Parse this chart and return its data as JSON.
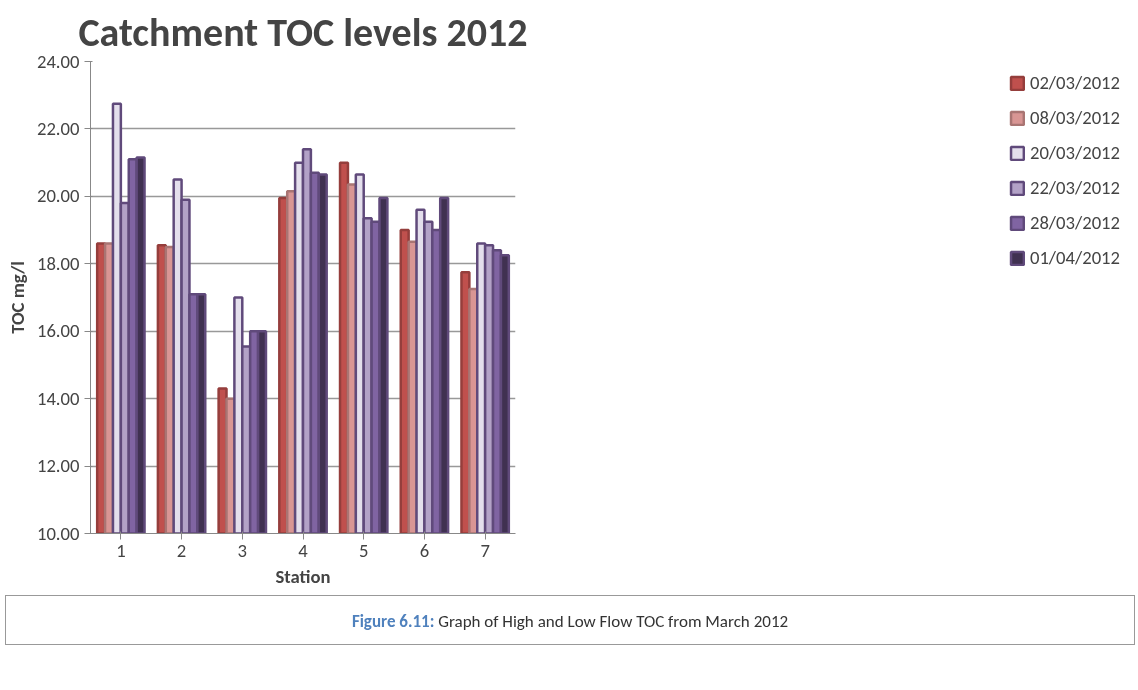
{
  "chart_data": {
    "type": "bar",
    "title": "Catchment TOC levels 2012",
    "xlabel": "Station",
    "ylabel": "TOC mg/l",
    "categories": [
      "1",
      "2",
      "3",
      "4",
      "5",
      "6",
      "7"
    ],
    "series": [
      {
        "name": "02/03/2012",
        "color": "#c0504d",
        "values": [
          18.6,
          18.55,
          14.3,
          19.95,
          21.0,
          19.0,
          17.75
        ]
      },
      {
        "name": "08/03/2012",
        "color": "#d99694",
        "values": [
          18.6,
          18.5,
          14.0,
          20.15,
          20.35,
          18.65,
          17.25
        ]
      },
      {
        "name": "20/03/2012",
        "color": "#e4dfec",
        "values": [
          22.75,
          20.5,
          17.0,
          21.0,
          20.65,
          19.6,
          18.6
        ]
      },
      {
        "name": "22/03/2012",
        "color": "#b3a2c7",
        "values": [
          19.8,
          19.9,
          15.55,
          21.4,
          19.35,
          19.25,
          18.55
        ]
      },
      {
        "name": "28/03/2012",
        "color": "#8064a2",
        "values": [
          21.1,
          17.1,
          16.0,
          20.7,
          19.25,
          19.0,
          18.4
        ]
      },
      {
        "name": "01/04/2012",
        "color": "#403151",
        "values": [
          21.15,
          17.1,
          16.0,
          20.65,
          19.95,
          19.95,
          18.25
        ]
      }
    ],
    "ylim": [
      10,
      24
    ],
    "yticks": [
      {
        "value": 10,
        "label": "10.00"
      },
      {
        "value": 12,
        "label": "12.00"
      },
      {
        "value": 14,
        "label": "14.00"
      },
      {
        "value": 16,
        "label": "16.00"
      },
      {
        "value": 18,
        "label": "18.00"
      },
      {
        "value": 20,
        "label": "20.00"
      },
      {
        "value": 22,
        "label": "22.00"
      },
      {
        "value": 24,
        "label": "24.00"
      }
    ],
    "grid": "y",
    "legend": "right",
    "annotations": [
      "Figure 6.11: Graph of High and Low Flow TOC from March 2012"
    ]
  }
}
